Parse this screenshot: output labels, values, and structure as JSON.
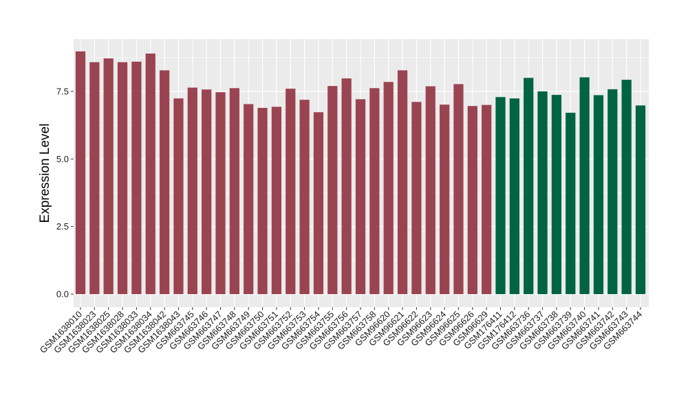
{
  "chart_data": {
    "type": "bar",
    "title": "",
    "xlabel": "",
    "ylabel": "Expression Level",
    "ylim": [
      0,
      9.2
    ],
    "yticks": [
      0.0,
      2.5,
      5.0,
      7.5
    ],
    "ytick_labels": [
      "0.0",
      "2.5",
      "5.0",
      "7.5"
    ],
    "grid": true,
    "legend": "none",
    "colors": {
      "group1": "#9b4451",
      "group2": "#006442",
      "panel": "#ebebeb",
      "grid": "#ffffff"
    },
    "categories": [
      "GSM1638010",
      "GSM1638023",
      "GSM1638025",
      "GSM1638028",
      "GSM1638033",
      "GSM1638034",
      "GSM1638042",
      "GSM1638043",
      "GSM663745",
      "GSM663746",
      "GSM663747",
      "GSM663748",
      "GSM663749",
      "GSM663750",
      "GSM663751",
      "GSM663752",
      "GSM663753",
      "GSM663754",
      "GSM663755",
      "GSM663756",
      "GSM663757",
      "GSM663758",
      "GSM96620",
      "GSM96621",
      "GSM96622",
      "GSM96623",
      "GSM96624",
      "GSM96625",
      "GSM96626",
      "GSM96629",
      "GSM176411",
      "GSM176412",
      "GSM663736",
      "GSM663737",
      "GSM663738",
      "GSM663739",
      "GSM663740",
      "GSM663741",
      "GSM663742",
      "GSM663743",
      "GSM663744"
    ],
    "values": [
      8.98,
      8.58,
      8.72,
      8.58,
      8.6,
      8.9,
      8.28,
      7.24,
      7.64,
      7.57,
      7.47,
      7.62,
      7.03,
      6.89,
      6.93,
      7.6,
      7.19,
      6.73,
      7.7,
      7.98,
      7.21,
      7.62,
      7.85,
      8.28,
      7.11,
      7.69,
      7.01,
      7.77,
      6.96,
      7.0,
      7.29,
      7.24,
      8.0,
      7.5,
      7.37,
      6.71,
      8.02,
      7.36,
      7.58,
      7.93,
      6.98
    ],
    "groups": [
      1,
      1,
      1,
      1,
      1,
      1,
      1,
      1,
      1,
      1,
      1,
      1,
      1,
      1,
      1,
      1,
      1,
      1,
      1,
      1,
      1,
      1,
      1,
      1,
      1,
      1,
      1,
      1,
      1,
      1,
      2,
      2,
      2,
      2,
      2,
      2,
      2,
      2,
      2,
      2,
      2
    ]
  }
}
